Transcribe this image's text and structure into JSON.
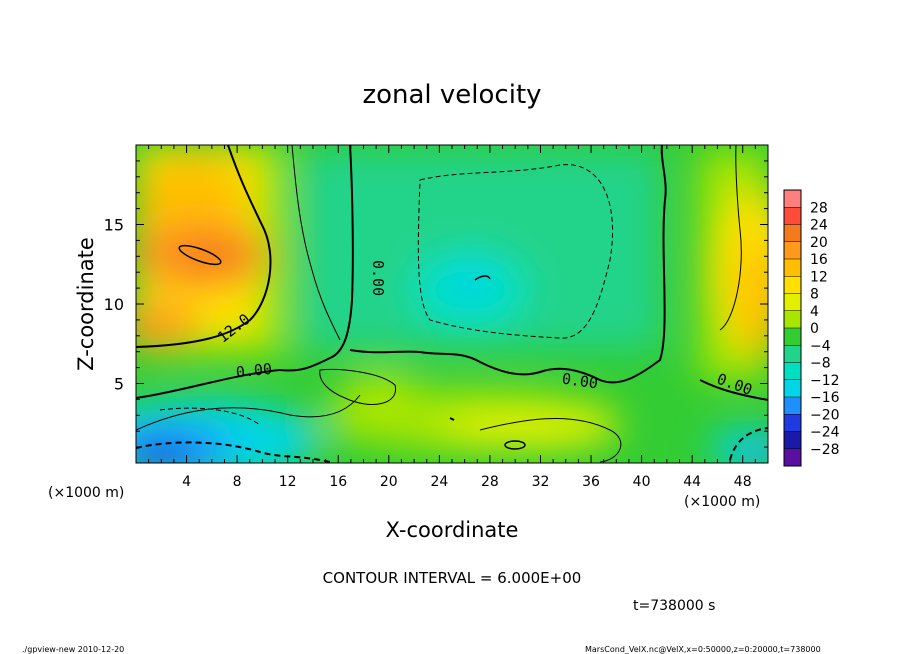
{
  "chart_data": {
    "type": "heatmap",
    "title": "zonal velocity",
    "xlabel": "X-coordinate",
    "ylabel": "Z-coordinate",
    "x_unit": "(×1000 m)",
    "y_unit": "(×1000 m)",
    "xlim": [
      0,
      50
    ],
    "ylim": [
      0,
      20
    ],
    "x_ticks": [
      4,
      8,
      12,
      16,
      20,
      24,
      28,
      32,
      36,
      40,
      44,
      48
    ],
    "y_ticks": [
      5,
      10,
      15
    ],
    "colorbar": {
      "labels": [
        "28",
        "24",
        "20",
        "16",
        "12",
        "8",
        "4",
        "0",
        "−4",
        "−8",
        "−12",
        "−16",
        "−20",
        "−24",
        "−28"
      ],
      "colors": [
        "#ff7f7f",
        "#ff4d3a",
        "#f47a1e",
        "#ff9a1a",
        "#ffbf00",
        "#ffe000",
        "#e2f000",
        "#a8e600",
        "#33cc33",
        "#22d38a",
        "#00e0c0",
        "#00d6e8",
        "#1f8fff",
        "#1e3ae0",
        "#1a1aa8",
        "#5a0fa0"
      ]
    },
    "contour_labels": [
      "12.0",
      "0.00",
      "0.00",
      "0.00",
      "0.00"
    ],
    "contour_interval": "CONTOUR INTERVAL = 6.000E+00",
    "time": "t=738000 s",
    "footer_left": "./gpview-new   2010-12-20",
    "footer_right": "MarsCond_VelX.nc@VelX,x=0:50000,z=0:20000,t=738000"
  }
}
